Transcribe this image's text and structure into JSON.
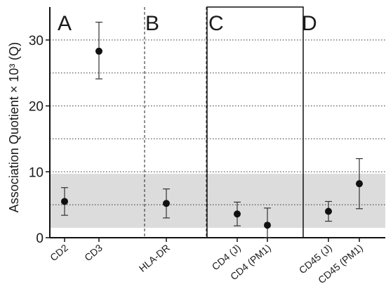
{
  "chart_data": {
    "type": "scatter",
    "ylabel": "Association Quotient × 10³ (Q)",
    "ylim": [
      0,
      35
    ],
    "yticks": [
      0,
      10,
      20,
      30
    ],
    "grid_lines_dotted": [
      5,
      10,
      15,
      20,
      25,
      30
    ],
    "reference_band": {
      "low": 1.5,
      "high": 9.7
    },
    "panels": [
      "A",
      "B",
      "C",
      "D"
    ],
    "categories": [
      "CD2",
      "CD3",
      "HLA-DR",
      "CD4 (J)",
      "CD4 (PM1)",
      "CD45 (J)",
      "CD45 (PM1)"
    ],
    "values": [
      5.5,
      28.3,
      5.2,
      3.6,
      1.9,
      4.0,
      8.2
    ],
    "error_low": [
      3.4,
      24.1,
      3.0,
      1.8,
      0.0,
      2.5,
      4.4
    ],
    "error_high": [
      7.6,
      32.7,
      7.4,
      5.4,
      4.5,
      5.5,
      12.0
    ],
    "colors": {
      "band": "#dcdcdc",
      "marker": "#111111",
      "axis": "#111111"
    }
  }
}
